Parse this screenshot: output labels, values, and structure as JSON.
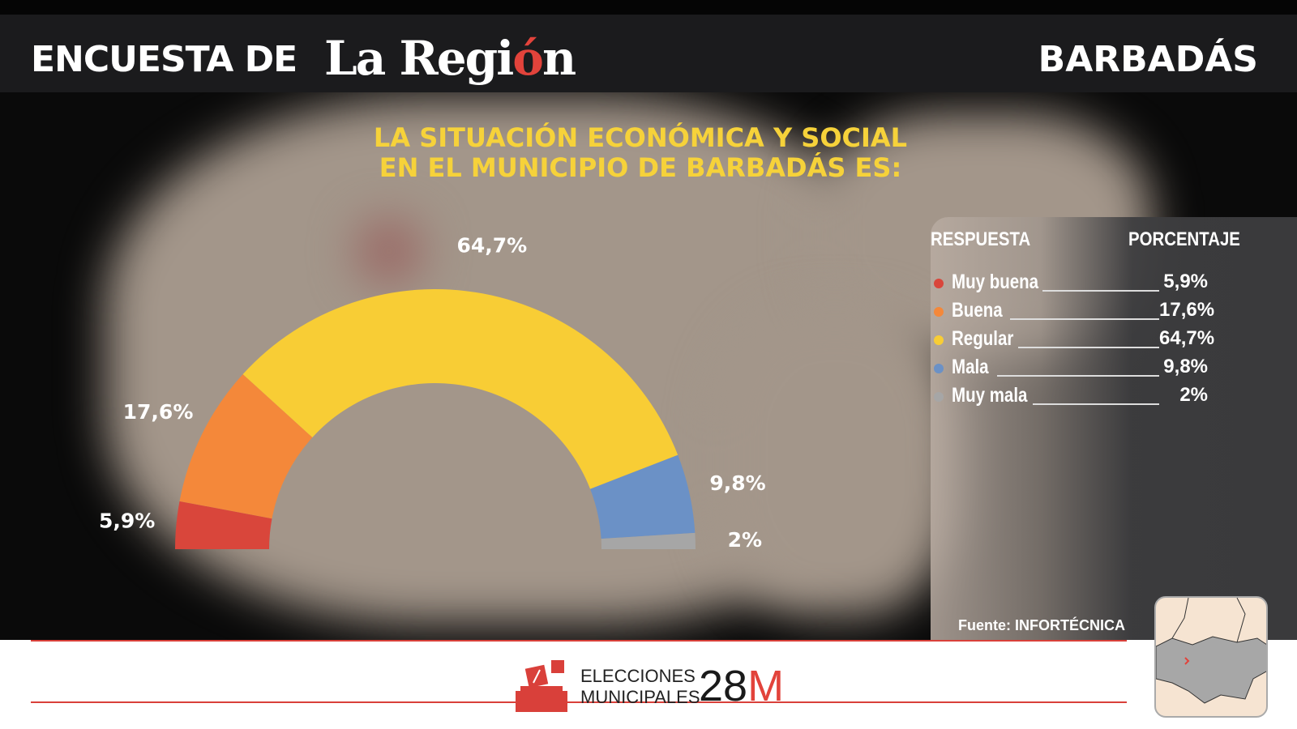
{
  "header": {
    "left": "ENCUESTA DE",
    "logo": "La Región",
    "right": "BARBADÁS"
  },
  "title_lines": [
    "LA SITUACIÓN ECONÓMICA Y SOCIAL",
    "EN EL MUNICIPIO DE BARBADÁS ES:"
  ],
  "chart_data": {
    "type": "pie",
    "subtype": "semicircle-donut",
    "title": "LA SITUACIÓN ECONÓMICA Y SOCIAL EN EL MUNICIPIO DE BARBADÁS ES:",
    "categories": [
      "Muy buena",
      "Buena",
      "Regular",
      "Mala",
      "Muy mala"
    ],
    "values": [
      5.9,
      17.6,
      64.7,
      9.8,
      2
    ],
    "labels": [
      "5,9%",
      "17,6%",
      "64,7%",
      "9,8%",
      "2%"
    ],
    "colors": [
      "#d9463b",
      "#f4883a",
      "#f8cd35",
      "#6b91c6",
      "#a6a6a6"
    ]
  },
  "legend": {
    "header_response": "RESPUESTA",
    "header_percent": "PORCENTAJE",
    "rows": [
      {
        "name": "Muy buena",
        "value": "5,9%"
      },
      {
        "name": "Buena",
        "value": "17,6%"
      },
      {
        "name": "Regular",
        "value": "64,7%"
      },
      {
        "name": "Mala",
        "value": "9,8%"
      },
      {
        "name": "Muy mala",
        "value": "2%"
      }
    ]
  },
  "source": "Fuente: INFORTÉCNICA",
  "footer": {
    "line1": "ELECCIONES",
    "line2": "MUNICIPALES",
    "num": "28",
    "letter": "M"
  }
}
